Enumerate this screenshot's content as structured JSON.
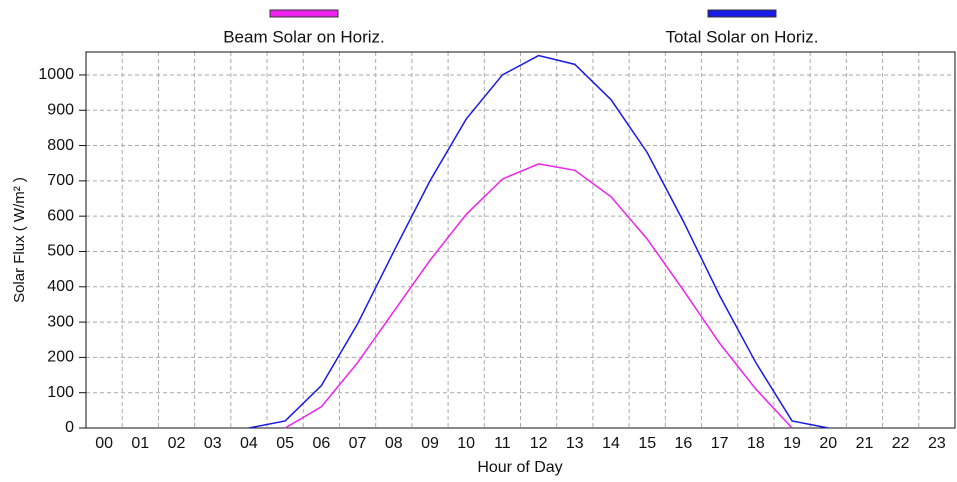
{
  "chart_data": {
    "type": "line",
    "x_label": "Hour of Day",
    "y_label": "Solar Flux ( W/m² )",
    "categories": [
      "00",
      "01",
      "02",
      "03",
      "04",
      "05",
      "06",
      "07",
      "08",
      "09",
      "10",
      "11",
      "12",
      "13",
      "14",
      "15",
      "16",
      "17",
      "18",
      "19",
      "20",
      "21",
      "22",
      "23"
    ],
    "series": [
      {
        "name": "Beam Solar on Horiz.",
        "color": "#ee22ee",
        "values": [
          null,
          null,
          null,
          null,
          null,
          0,
          60,
          185,
          330,
          475,
          605,
          705,
          748,
          730,
          655,
          535,
          390,
          240,
          110,
          0,
          null,
          null,
          null,
          null
        ]
      },
      {
        "name": "Total Solar on Horiz.",
        "color": "#1a1ae6",
        "values": [
          null,
          null,
          null,
          null,
          0,
          20,
          120,
          295,
          500,
          700,
          875,
          1000,
          1055,
          1030,
          930,
          780,
          585,
          375,
          185,
          20,
          0,
          null,
          null,
          null
        ]
      }
    ],
    "ylim": [
      0,
      1065
    ],
    "yticks": [
      0,
      100,
      200,
      300,
      400,
      500,
      600,
      700,
      800,
      900,
      1000
    ],
    "grid": true
  }
}
